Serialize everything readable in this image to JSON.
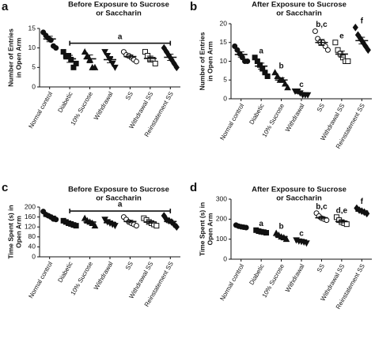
{
  "chart_data": [
    {
      "type": "dot",
      "panel_label": "a",
      "title": [
        "Before Exposure to Sucrose",
        "or Saccharin"
      ],
      "ylabel": [
        "Number of Entries",
        "in Open Arm"
      ],
      "categories": [
        "Normal control",
        "Diabetic",
        "10% Sucrose",
        "Withdrawal",
        "SS",
        "Withdrawal SS",
        "Reinstatement SS"
      ],
      "markers": [
        "circle",
        "square",
        "triangle-up",
        "triangle-down",
        "circle-open",
        "square-open",
        "diamond"
      ],
      "ylim": [
        0,
        15
      ],
      "yticks": [
        0,
        5,
        10,
        15
      ],
      "points": [
        [
          14,
          13.2,
          12.5,
          12,
          10.5,
          10
        ],
        [
          9,
          8,
          8,
          7,
          5,
          6
        ],
        [
          9,
          8,
          7,
          5,
          5
        ],
        [
          9,
          8,
          7,
          6,
          5
        ],
        [
          9,
          8.2,
          8,
          7.5,
          7,
          6.5
        ],
        [
          9,
          8,
          7,
          7,
          6
        ],
        [
          10,
          9,
          8,
          7,
          6,
          5
        ]
      ],
      "means": [
        12.3,
        7.2,
        7.2,
        7.0,
        7.8,
        7.3,
        7.6
      ],
      "sems": [
        0.7,
        0.9,
        1.0,
        0.8,
        0.4,
        0.6,
        0.8
      ],
      "bracket_label": "a"
    },
    {
      "type": "dot",
      "panel_label": "b",
      "title": [
        "After Exposure to Sucrose",
        "or Saccharin"
      ],
      "ylabel": [
        "Number of Entries",
        "in Open Arm"
      ],
      "categories": [
        "Normal control",
        "Diabetic",
        "10% Sucrose",
        "Withdrawal",
        "SS",
        "Withdrawal SS",
        "Reinstatement SS"
      ],
      "markers": [
        "circle",
        "square",
        "triangle-up",
        "triangle-down",
        "circle-open",
        "square-open",
        "diamond"
      ],
      "ylim": [
        0,
        20
      ],
      "yticks": [
        0,
        5,
        10,
        15,
        20
      ],
      "points": [
        [
          14,
          13,
          12,
          11,
          10,
          10
        ],
        [
          11,
          10,
          9,
          8,
          7,
          6
        ],
        [
          7,
          6,
          5,
          5,
          4,
          3
        ],
        [
          2,
          2,
          1.5,
          1,
          1,
          1
        ],
        [
          18,
          16,
          15,
          15,
          14,
          13
        ],
        [
          15,
          13,
          12,
          11,
          10,
          10
        ],
        [
          19,
          17,
          16,
          15,
          14,
          13
        ]
      ],
      "means": [
        11.8,
        8.7,
        5.0,
        1.5,
        15.0,
        11.9,
        15.5
      ],
      "sems": [
        0.7,
        0.8,
        0.6,
        0.2,
        0.8,
        0.8,
        0.9
      ],
      "group_labels": [
        null,
        "a",
        "b",
        "c",
        "b,c",
        "e",
        "f"
      ]
    },
    {
      "type": "dot",
      "panel_label": "c",
      "title": [
        "Before Exposure to Sucrose",
        "or Saccharin"
      ],
      "ylabel": [
        "Time Spent (s) in",
        "Open Arm"
      ],
      "categories": [
        "Normal control",
        "Diabetic",
        "10% Sucrose",
        "Withdrawal",
        "SS",
        "Withdrawal SS",
        "Reinstatement SS"
      ],
      "markers": [
        "circle",
        "square",
        "triangle-up",
        "triangle-down",
        "circle-open",
        "square-open",
        "diamond"
      ],
      "ylim": [
        0,
        200
      ],
      "yticks": [
        0,
        40,
        80,
        120,
        160,
        200
      ],
      "points": [
        [
          182,
          170,
          165,
          160,
          152,
          150
        ],
        [
          145,
          140,
          135,
          132,
          128,
          125
        ],
        [
          155,
          145,
          140,
          135,
          125
        ],
        [
          150,
          140,
          135,
          130,
          125
        ],
        [
          160,
          150,
          140,
          135,
          130,
          125
        ],
        [
          155,
          148,
          140,
          135,
          130,
          125
        ],
        [
          165,
          150,
          145,
          140,
          130,
          120
        ]
      ],
      "means": [
        163,
        135,
        140,
        137,
        142,
        140,
        142
      ],
      "sems": [
        5,
        3,
        5,
        4,
        5,
        5,
        6
      ],
      "bracket_label": "a"
    },
    {
      "type": "dot",
      "panel_label": "d",
      "title": [
        "After Exposure to Sucrose",
        "or Saccharin"
      ],
      "ylabel": [
        "Time Spent (s) in",
        "Open Arm"
      ],
      "categories": [
        "Normal control",
        "Diabetic",
        "10% Sucrose",
        "Withdrawal",
        "SS",
        "Withdrawal SS",
        "Reinstatement SS"
      ],
      "markers": [
        "circle",
        "square",
        "triangle-up",
        "triangle-down",
        "circle-open",
        "square-open",
        "diamond"
      ],
      "ylim": [
        0,
        300
      ],
      "yticks": [
        0,
        100,
        200,
        300
      ],
      "points": [
        [
          170,
          165,
          162,
          160,
          158
        ],
        [
          145,
          140,
          137,
          135,
          132
        ],
        [
          130,
          120,
          112,
          108,
          100
        ],
        [
          95,
          90,
          88,
          85,
          80
        ],
        [
          230,
          215,
          205,
          200,
          195
        ],
        [
          210,
          195,
          185,
          180,
          175
        ],
        [
          255,
          245,
          240,
          235,
          228
        ]
      ],
      "means": [
        162,
        137,
        113,
        88,
        207,
        188,
        240
      ],
      "sems": [
        3,
        3,
        5,
        3,
        6,
        6,
        5
      ],
      "group_labels": [
        null,
        "a",
        "b",
        "c",
        "b,c",
        "d,e",
        "f"
      ]
    }
  ]
}
